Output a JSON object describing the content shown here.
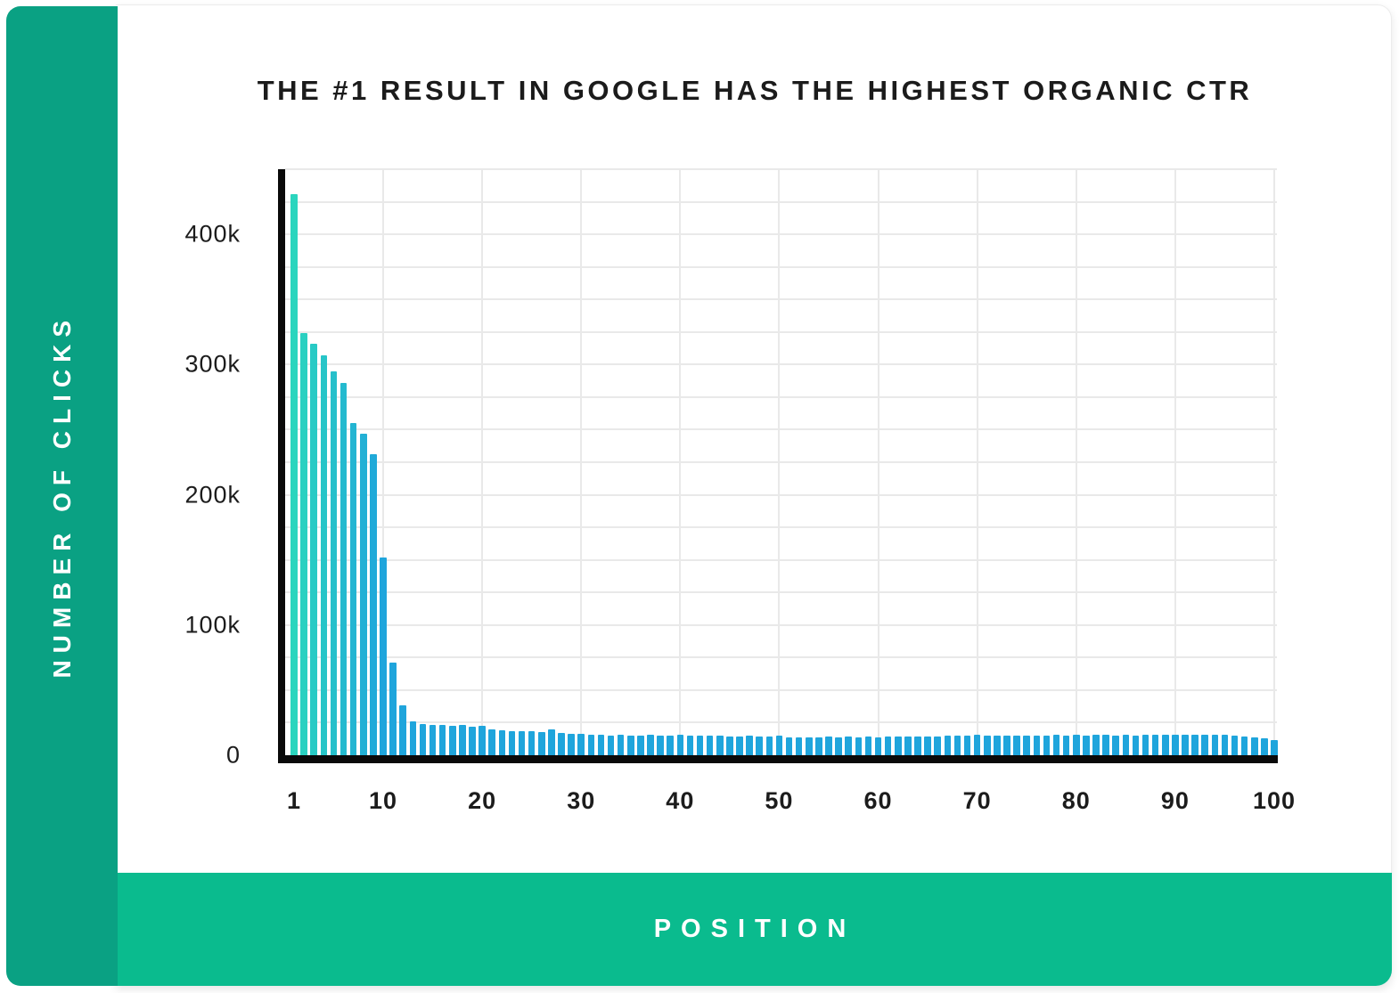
{
  "title": "THE #1 RESULT IN GOOGLE HAS THE HIGHEST ORGANIC CTR",
  "y_axis_rail_label": "NUMBER OF CLICKS",
  "x_axis_rail_label": "POSITION",
  "colors": {
    "sidebar_green": "#0aa183",
    "bottom_bar_green": "#0abb8e",
    "bar_teal_start": "#2bd5be",
    "bar_blue_end": "#1fa5dc",
    "grid": "#e9e9e9",
    "axis": "#0a0a0a",
    "text": "#1b1b1b",
    "card_bg": "#ffffff"
  },
  "chart_data": {
    "type": "bar",
    "title": "THE #1 RESULT IN GOOGLE HAS THE HIGHEST ORGANIC CTR",
    "xlabel": "POSITION",
    "ylabel": "NUMBER OF CLICKS",
    "x_range": [
      1,
      100
    ],
    "ylim": [
      0,
      450000
    ],
    "grid": true,
    "grid_step_y": 25000,
    "grid_step_x": 10,
    "legend": "none",
    "y_tick_values": [
      0,
      100000,
      200000,
      300000,
      400000
    ],
    "y_tick_labels": [
      "0",
      "100k",
      "200k",
      "300k",
      "400k"
    ],
    "x_tick_values": [
      1,
      10,
      20,
      30,
      40,
      50,
      60,
      70,
      80,
      90,
      100
    ],
    "x_tick_labels": [
      "1",
      "10",
      "20",
      "30",
      "40",
      "50",
      "60",
      "70",
      "80",
      "90",
      "100"
    ],
    "values": [
      431000,
      324000,
      316000,
      307000,
      295000,
      286000,
      255000,
      247000,
      231000,
      152000,
      71000,
      38000,
      26000,
      24000,
      23000,
      23500,
      22800,
      23200,
      22000,
      22400,
      20000,
      19200,
      18700,
      18200,
      18800,
      18100,
      19800,
      17200,
      16500,
      16400,
      15800,
      15500,
      15300,
      15700,
      15200,
      15000,
      15400,
      15100,
      14900,
      15700,
      15200,
      14800,
      15000,
      15300,
      14700,
      14500,
      14800,
      14300,
      14600,
      14900,
      13900,
      13600,
      14000,
      13700,
      14100,
      13800,
      14100,
      13900,
      14300,
      14000,
      14300,
      14100,
      14400,
      14200,
      14500,
      14300,
      15000,
      15300,
      15100,
      15400,
      15200,
      15000,
      15300,
      15100,
      14900,
      15200,
      15000,
      15400,
      15200,
      15500,
      15300,
      15600,
      15400,
      15200,
      15500,
      15300,
      15600,
      15400,
      15700,
      15500,
      15400,
      15600,
      15900,
      15700,
      16000,
      15000,
      14400,
      13700,
      13000,
      11500
    ]
  }
}
